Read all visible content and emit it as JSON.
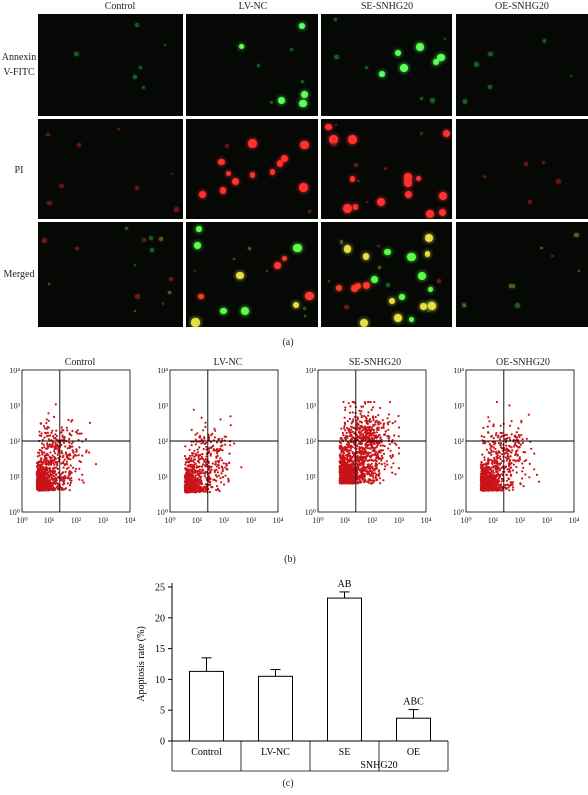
{
  "panel_a": {
    "columns": [
      "Control",
      "LV-NC",
      "SE-SNHG20",
      "OE-SNHG20"
    ],
    "rows": [
      "Annexin V-FITC",
      "PI",
      "Merged"
    ],
    "label": "(a)"
  },
  "panel_b": {
    "label": "(b)",
    "plots": [
      {
        "title": "Control"
      },
      {
        "title": "LV-NC"
      },
      {
        "title": "SE-SNHG20"
      },
      {
        "title": "OE-SNHG20"
      }
    ],
    "tick_labels": [
      "10⁰",
      "10¹",
      "10²",
      "10³",
      "10⁴"
    ],
    "colors": {
      "dots": "#c8141a",
      "grid": "#000000"
    }
  },
  "panel_c": {
    "label": "(c)",
    "group_label": "SNHG20"
  },
  "chart_data": {
    "type": "bar",
    "categories": [
      "Control",
      "LV-NC",
      "SE",
      "OE"
    ],
    "values": [
      11.3,
      10.5,
      23.2,
      3.7
    ],
    "errors": [
      2.2,
      1.1,
      1.0,
      1.4
    ],
    "annotations": [
      "",
      "",
      "AB",
      "ABC"
    ],
    "ylabel": "Apoptosis rate (%)",
    "ylim": [
      0,
      25
    ],
    "yticks": [
      0,
      5,
      10,
      15,
      20,
      25
    ],
    "bar_color": "#ffffff",
    "edge_color": "#000000"
  }
}
